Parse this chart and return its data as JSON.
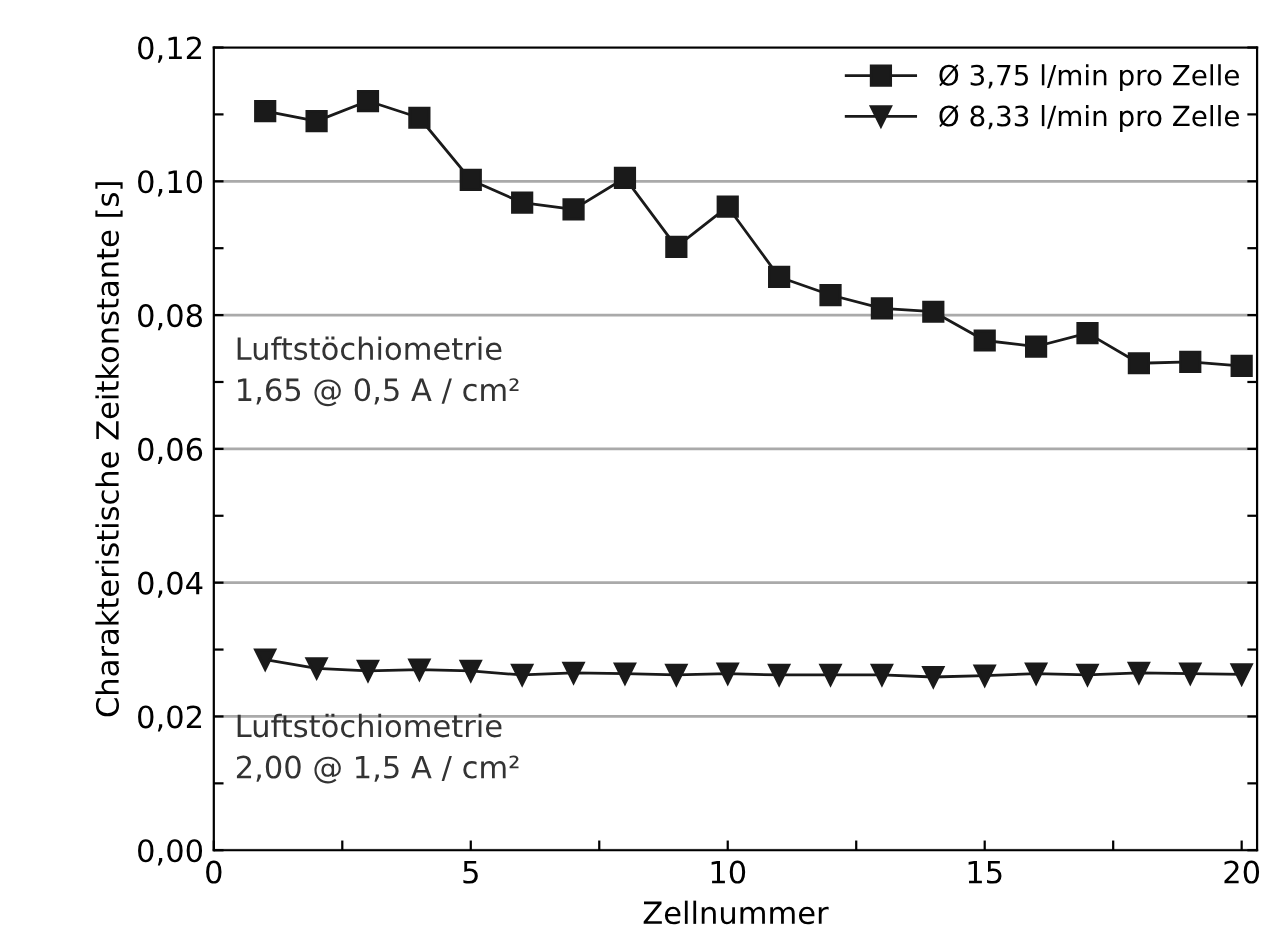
{
  "chart_data": {
    "type": "line",
    "xlabel": "Zellnummer",
    "ylabel": "Charakteristische Zeitkonstante [s]",
    "x": [
      1,
      2,
      3,
      4,
      5,
      6,
      7,
      8,
      9,
      10,
      11,
      12,
      13,
      14,
      15,
      16,
      17,
      18,
      19,
      20
    ],
    "series": [
      {
        "name": "Ø 3,75 l/min pro Zelle",
        "color": "#1a1a1a",
        "marker": "square",
        "values": [
          0.1105,
          0.109,
          0.112,
          0.1095,
          0.1002,
          0.0968,
          0.0958,
          0.1005,
          0.0902,
          0.0962,
          0.0857,
          0.083,
          0.081,
          0.0805,
          0.0762,
          0.0753,
          0.0773,
          0.0728,
          0.073,
          0.0724
        ]
      },
      {
        "name": "Ø 8,33 l/min pro Zelle",
        "color": "#1a1a1a",
        "marker": "triangle",
        "values": [
          0.0285,
          0.0272,
          0.0268,
          0.027,
          0.0268,
          0.0262,
          0.0265,
          0.0264,
          0.0262,
          0.0264,
          0.0262,
          0.0262,
          0.0262,
          0.0259,
          0.0261,
          0.0264,
          0.0262,
          0.0265,
          0.0264,
          0.0263
        ]
      }
    ],
    "xlim": [
      0,
      20.3
    ],
    "xticks": [
      0,
      {
        "value": 2.5,
        "label": null
      },
      5,
      {
        "value": 7.5,
        "label": null
      },
      10,
      {
        "value": 12.5,
        "label": null
      },
      15,
      {
        "value": 17.5,
        "label": null
      },
      20
    ],
    "ylim": [
      0,
      0.12
    ],
    "yticks": [
      {
        "value": 0,
        "label": "0,00"
      },
      {
        "value": 0.01,
        "label": null
      },
      {
        "value": 0.02,
        "label": "0,02"
      },
      {
        "value": 0.03,
        "label": null
      },
      {
        "value": 0.04,
        "label": "0,04"
      },
      {
        "value": 0.05,
        "label": null
      },
      {
        "value": 0.06,
        "label": "0,06"
      },
      {
        "value": 0.07,
        "label": null
      },
      {
        "value": 0.08,
        "label": "0,08"
      },
      {
        "value": 0.09,
        "label": null
      },
      {
        "value": 0.1,
        "label": "0,10"
      },
      {
        "value": 0.11,
        "label": null
      },
      {
        "value": 0.12,
        "label": "0,12"
      }
    ],
    "grid": "y",
    "legend": "top right",
    "line_style": "solid",
    "annotations": [
      "Luftstöchiometrie\n1,65 @ 0,5 A / cm²",
      "Luftstöchiometrie\n2,00 @ 1,5 A / cm²"
    ]
  }
}
